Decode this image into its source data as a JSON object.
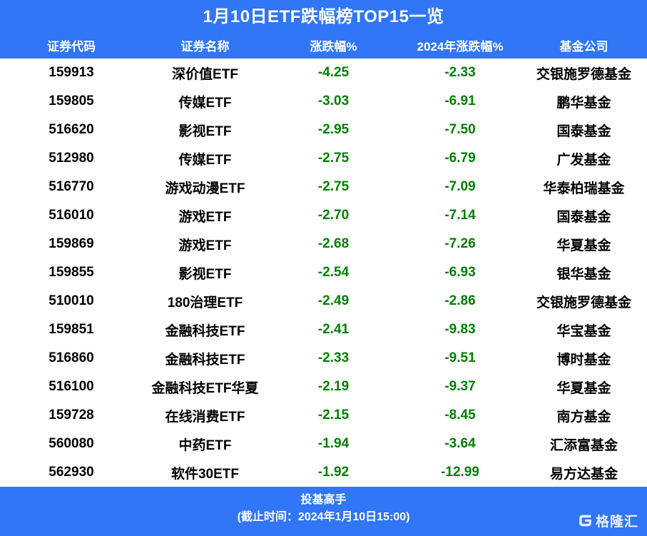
{
  "title": "1月10日ETF跌幅榜TOP15一览",
  "columns": [
    "证券代码",
    "证券名称",
    "涨跌幅%",
    "2024年涨跌幅%",
    "基金公司"
  ],
  "chart_data": {
    "type": "table",
    "title": "1月10日ETF跌幅榜TOP15一览",
    "columns": [
      "证券代码",
      "证券名称",
      "涨跌幅%",
      "2024年涨跌幅%",
      "基金公司"
    ],
    "rows": [
      [
        "159913",
        "深价值ETF",
        "-4.25",
        "-2.33",
        "交银施罗德基金"
      ],
      [
        "159805",
        "传媒ETF",
        "-3.03",
        "-6.91",
        "鹏华基金"
      ],
      [
        "516620",
        "影视ETF",
        "-2.95",
        "-7.50",
        "国泰基金"
      ],
      [
        "512980",
        "传媒ETF",
        "-2.75",
        "-6.79",
        "广发基金"
      ],
      [
        "516770",
        "游戏动漫ETF",
        "-2.75",
        "-7.09",
        "华泰柏瑞基金"
      ],
      [
        "516010",
        "游戏ETF",
        "-2.70",
        "-7.14",
        "国泰基金"
      ],
      [
        "159869",
        "游戏ETF",
        "-2.68",
        "-7.26",
        "华夏基金"
      ],
      [
        "159855",
        "影视ETF",
        "-2.54",
        "-6.93",
        "银华基金"
      ],
      [
        "510010",
        "180治理ETF",
        "-2.49",
        "-2.86",
        "交银施罗德基金"
      ],
      [
        "159851",
        "金融科技ETF",
        "-2.41",
        "-9.83",
        "华宝基金"
      ],
      [
        "516860",
        "金融科技ETF",
        "-2.33",
        "-9.51",
        "博时基金"
      ],
      [
        "516100",
        "金融科技ETF华夏",
        "-2.19",
        "-9.37",
        "华夏基金"
      ],
      [
        "159728",
        "在线消费ETF",
        "-2.15",
        "-8.45",
        "南方基金"
      ],
      [
        "560080",
        "中药ETF",
        "-1.94",
        "-3.64",
        "汇添富基金"
      ],
      [
        "562930",
        "软件30ETF",
        "-1.92",
        "-12.99",
        "易方达基金"
      ]
    ]
  },
  "footer": {
    "line1": "投基高手",
    "line2": "(截止时间：2024年1月10日15:00)",
    "logo_text": "格隆汇"
  },
  "colors": {
    "banner_blue": "#3076F6",
    "value_green": "#008000",
    "text_black": "#000000",
    "background_white": "#FFFFFF"
  }
}
